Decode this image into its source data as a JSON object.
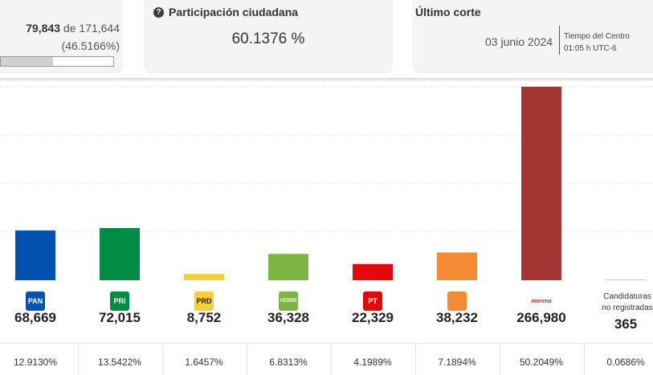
{
  "actas": {
    "counted": "79,843",
    "of_label": "de",
    "total": "171,644",
    "percent": "(46.5166%)",
    "progress": 0.465166
  },
  "participacion": {
    "title": "Participación ciudadana",
    "value": "60.1376 %"
  },
  "corte": {
    "title": "Último corte",
    "date": "03 junio 2024",
    "tz_line1": "Tiempo del Centro",
    "tz_line2": "01:05 h UTC-6"
  },
  "chart_data": {
    "type": "bar",
    "categories": [
      "PAN",
      "PRI",
      "PRD",
      "PVEM",
      "PT",
      "MC",
      "MORENA",
      "Candidaturas no registradas"
    ],
    "values": [
      68669,
      72015,
      8752,
      36328,
      22329,
      38232,
      266980,
      365
    ],
    "value_labels": [
      "68,669",
      "72,015",
      "8,752",
      "36,328",
      "22,329",
      "38,232",
      "266,980",
      "365"
    ],
    "percentages": [
      "12.9130%",
      "13.5422%",
      "1.6457%",
      "6.8313%",
      "4.1989%",
      "7.1894%",
      "50.2049%",
      "0.0686%"
    ],
    "colors": [
      "#0051b0",
      "#008c45",
      "#f6d03c",
      "#7db543",
      "#e4080b",
      "#f58a35",
      "#a33532",
      "#cccccc"
    ],
    "logo_texts": [
      "PAN",
      "PRI",
      "PRD",
      "VERDE",
      "PT",
      "",
      "morena",
      ""
    ],
    "last_label_lines": [
      "Candidaturas",
      "no registradas"
    ],
    "ylim": [
      0,
      270000
    ],
    "grid": true
  }
}
